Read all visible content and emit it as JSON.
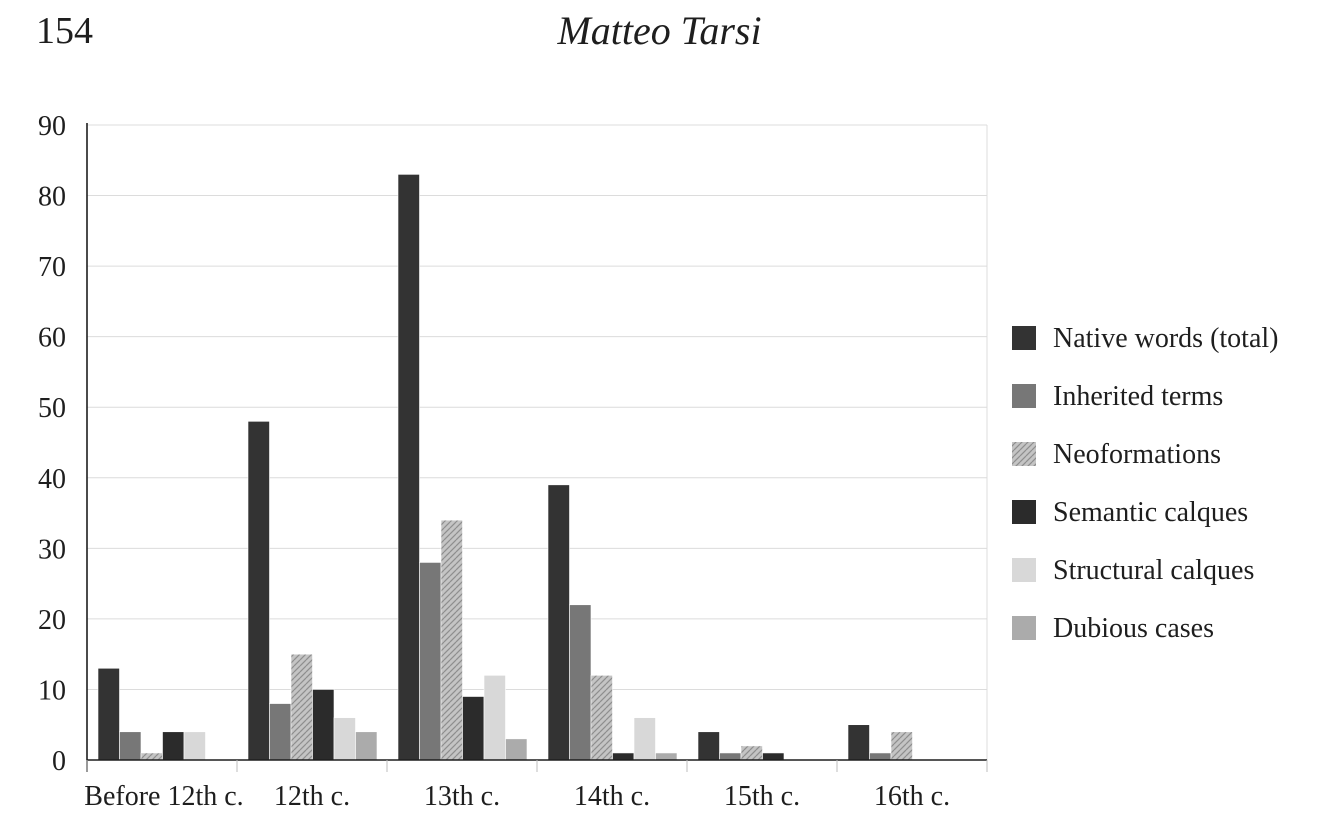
{
  "header": {
    "page_number": "154",
    "author": "Matteo Tarsi"
  },
  "chart_data": {
    "type": "bar",
    "categories": [
      "Before 12th c.",
      "12th c.",
      "13th c.",
      "14th c.",
      "15th c.",
      "16th c."
    ],
    "series": [
      {
        "name": "Native words (total)",
        "values": [
          13,
          48,
          83,
          39,
          4,
          5
        ],
        "color": "#333333",
        "pattern": "solid"
      },
      {
        "name": "Inherited terms",
        "values": [
          4,
          8,
          28,
          22,
          1,
          1
        ],
        "color": "#777777",
        "pattern": "solid"
      },
      {
        "name": "Neoformations",
        "values": [
          1,
          15,
          34,
          12,
          2,
          4
        ],
        "color": "#b8b8b8",
        "pattern": "texture"
      },
      {
        "name": "Semantic calques",
        "values": [
          4,
          10,
          9,
          1,
          1,
          0
        ],
        "color": "#2b2b2b",
        "pattern": "solid"
      },
      {
        "name": "Structural calques",
        "values": [
          4,
          6,
          12,
          6,
          0,
          0
        ],
        "color": "#d8d8d8",
        "pattern": "solid"
      },
      {
        "name": "Dubious cases",
        "values": [
          0,
          4,
          3,
          1,
          0,
          0
        ],
        "color": "#ababab",
        "pattern": "solid"
      }
    ],
    "title": "",
    "xlabel": "",
    "ylabel": "",
    "ylim": [
      0,
      90
    ],
    "yticks": [
      0,
      10,
      20,
      30,
      40,
      50,
      60,
      70,
      80,
      90
    ],
    "grid": true,
    "legend_position": "right"
  }
}
